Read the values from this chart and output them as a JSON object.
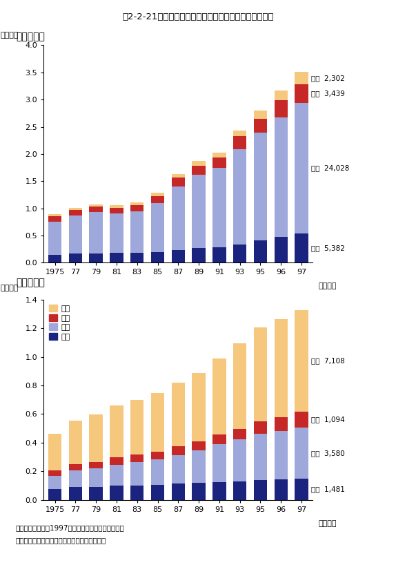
{
  "title": "第2-2-21図　我が国の学位取得者の推移（自然科学系）",
  "subtitle1": "（１）修士",
  "subtitle2": "（２）博士",
  "years": [
    1975,
    1977,
    1979,
    1981,
    1983,
    1985,
    1987,
    1989,
    1991,
    1993,
    1995,
    1996,
    1997
  ],
  "master": {
    "rikagaku": [
      1494,
      1667,
      1746,
      1776,
      1832,
      1924,
      2302,
      2659,
      2865,
      3330,
      4102,
      4741,
      5382
    ],
    "kougaku": [
      6108,
      7025,
      7523,
      7247,
      7580,
      9090,
      11699,
      13497,
      14621,
      17562,
      19765,
      22004,
      24028
    ],
    "nougaku": [
      898,
      983,
      1053,
      1063,
      1123,
      1264,
      1619,
      1721,
      1872,
      2363,
      2658,
      3119,
      3439
    ],
    "hoken": [
      408,
      433,
      434,
      474,
      508,
      579,
      716,
      830,
      855,
      1087,
      1409,
      1751,
      2302
    ],
    "ylabel": "（万人）",
    "ylim": [
      0,
      4.0
    ],
    "yticks": [
      0.0,
      0.5,
      1.0,
      1.5,
      2.0,
      2.5,
      3.0,
      3.5,
      4.0
    ],
    "annotations": [
      {
        "label": "保健",
        "value": "2,302",
        "pos": "top"
      },
      {
        "label": "農学",
        "value": "3,439",
        "pos": "nou"
      },
      {
        "label": "工学",
        "value": "24,028",
        "pos": "kou"
      },
      {
        "label": "理学",
        "value": "5,382",
        "pos": "rik"
      }
    ]
  },
  "doctor": {
    "rikagaku": [
      746,
      894,
      919,
      998,
      1021,
      1063,
      1130,
      1180,
      1264,
      1312,
      1390,
      1439,
      1481
    ],
    "kougaku": [
      942,
      1175,
      1286,
      1463,
      1636,
      1763,
      1999,
      2271,
      2618,
      2930,
      3235,
      3387,
      3580
    ],
    "nougaku": [
      364,
      432,
      464,
      502,
      524,
      556,
      606,
      632,
      676,
      726,
      852,
      952,
      1094
    ],
    "hoken": [
      2579,
      3034,
      3299,
      3649,
      3826,
      4071,
      4456,
      4792,
      5313,
      5976,
      6558,
      6859,
      7108
    ],
    "ylabel": "（万人）",
    "ylim": [
      0,
      1.4
    ],
    "yticks": [
      0.0,
      0.2,
      0.4,
      0.6,
      0.8,
      1.0,
      1.2,
      1.4
    ],
    "annotations": [
      {
        "label": "保健",
        "value": "7,108",
        "pos": "top"
      },
      {
        "label": "農学",
        "value": "1,094",
        "pos": "nou"
      },
      {
        "label": "工学",
        "value": "3,580",
        "pos": "kou"
      },
      {
        "label": "理学",
        "value": "1,481",
        "pos": "rik"
      }
    ]
  },
  "colors": {
    "rikagaku": "#1a237e",
    "kougaku": "#9fa8da",
    "nougaku": "#c62828",
    "hoken": "#f5c87e"
  },
  "xtick_labels": [
    "1975",
    "77",
    "79",
    "81",
    "83",
    "85",
    "87",
    "89",
    "91",
    "93",
    "95",
    "96",
    "97"
  ],
  "xlabel": "（年度）",
  "legend_labels": [
    "保健",
    "農学",
    "工学",
    "理学"
  ],
  "note1": "注）図中の数字は1997年度の学位取得者数である。",
  "note2": "資料：文部省「文部統計要覧（平成１３版）」"
}
